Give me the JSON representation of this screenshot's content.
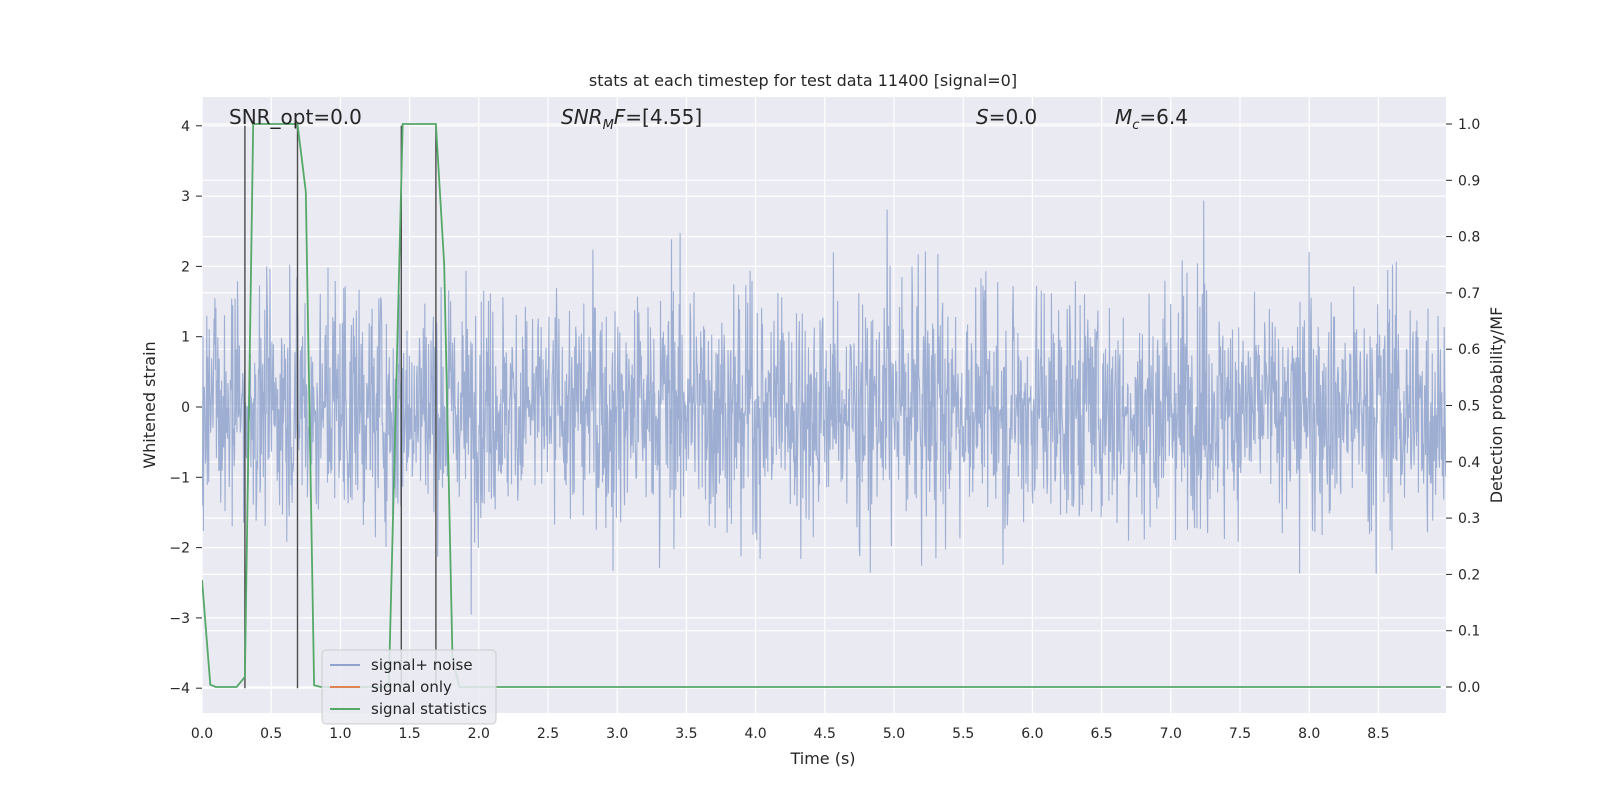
{
  "chart_data": {
    "type": "line",
    "title": "stats at each timestep for test data 11400 [signal=0]",
    "xlabel": "Time (s)",
    "ylabel": "Whitened strain",
    "ylabel_right": "Detection probability/MF",
    "xlim": [
      0.0,
      9.0
    ],
    "ylim": [
      -4.35,
      4.4
    ],
    "ylim_right": [
      -0.048,
      1.045
    ],
    "x_ticks": [
      "0.0",
      "0.5",
      "1.0",
      "1.5",
      "2.0",
      "2.5",
      "3.0",
      "3.5",
      "4.0",
      "4.5",
      "5.0",
      "5.5",
      "6.0",
      "6.5",
      "7.0",
      "7.5",
      "8.0",
      "8.5"
    ],
    "y_ticks": [
      "−4",
      "−3",
      "−2",
      "−1",
      "0",
      "1",
      "2",
      "3",
      "4"
    ],
    "y_ticks_right": [
      "0.0",
      "0.1",
      "0.2",
      "0.3",
      "0.4",
      "0.5",
      "0.6",
      "0.7",
      "0.8",
      "0.9",
      "1.0"
    ],
    "grid": true,
    "legend_position": "lower-left",
    "annotations": [
      {
        "id": "snr_opt",
        "text": "SNR_opt=0.0"
      },
      {
        "id": "snr_mf",
        "text": "SNR_MF=[4.55]"
      },
      {
        "id": "s_stat",
        "text": "S=0.0"
      },
      {
        "id": "mc",
        "text": "M_c=6.4"
      }
    ],
    "series": [
      {
        "name": "signal+ noise",
        "color": "#8fa3cc",
        "style": "dense noise trace, amplitude mostly within ±2.5, peaks to about ±4"
      },
      {
        "name": "signal only",
        "color": "#dd8452",
        "values": []
      },
      {
        "name": "signal statistics",
        "color": "#55a868",
        "axis": "right",
        "x": [
          0.0,
          0.06,
          0.1,
          0.25,
          0.31,
          0.37,
          0.42,
          0.69,
          0.75,
          0.81,
          0.86,
          1.35,
          1.4,
          1.45,
          1.5,
          1.69,
          1.75,
          1.81,
          1.86,
          8.4,
          8.95
        ],
        "values": [
          0.19,
          0.004,
          0.0,
          0.0,
          0.018,
          1.0,
          1.0,
          1.0,
          0.88,
          0.003,
          0.0,
          0.0,
          0.5,
          1.0,
          1.0,
          1.0,
          0.75,
          0.05,
          0.0,
          0.0,
          0.0
        ]
      },
      {
        "name": "",
        "color": "#4c4c4c",
        "style": "vertical markers",
        "x": [
          0.31,
          0.69,
          1.44,
          1.69
        ],
        "y_range": [
          -4.0,
          4.0
        ]
      }
    ]
  }
}
